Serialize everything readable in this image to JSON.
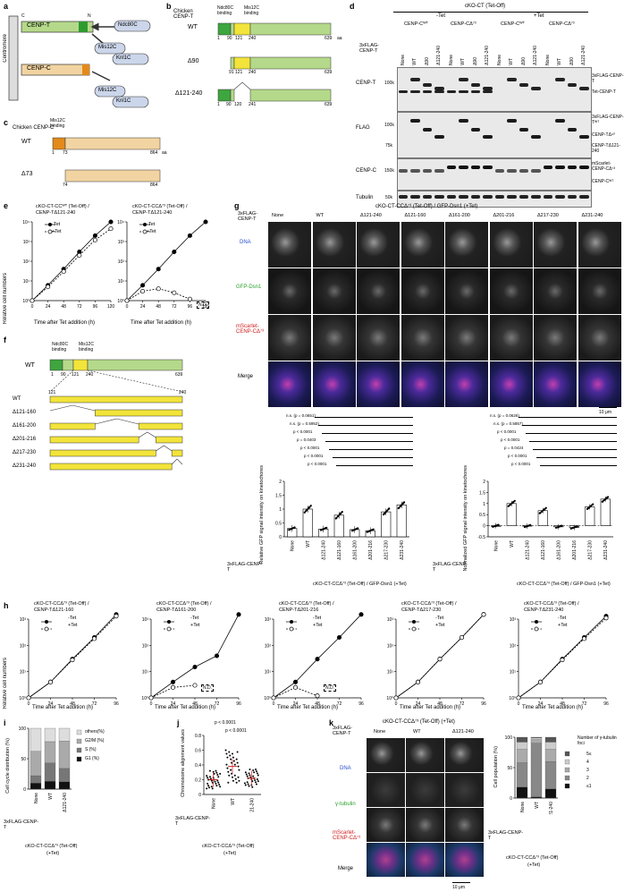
{
  "panels": {
    "a": {
      "letter": "a",
      "centromere": "Centromere",
      "cenp_t": "CENP-T",
      "cenp_c": "CENP-C",
      "c_label": "C",
      "n_label": "N",
      "ndc80c": "Ndc80C",
      "mis12c": "Mis12C",
      "knl1c": "Knl1C"
    },
    "b": {
      "letter": "b",
      "header": "Chicken CENP-T",
      "ndc80_binding": "Ndc80C binding",
      "mis12_binding": "Mis12C binding",
      "rows": [
        {
          "name": "WT",
          "ticks": [
            "1",
            "90",
            "121",
            "240"
          ],
          "end": "639",
          "unit": "aa"
        },
        {
          "name": "Δ90",
          "ticks": [
            "91",
            "121",
            "240"
          ],
          "end": "639"
        },
        {
          "name": "Δ121-240",
          "ticks": [
            "1",
            "90",
            "120",
            "241"
          ],
          "end": "639"
        }
      ]
    },
    "c": {
      "letter": "c",
      "header": "Chicken CENP-C",
      "mis12_binding": "Mis12C binding",
      "rows": [
        {
          "name": "WT",
          "start": "1",
          "mid": "73",
          "end": "864",
          "unit": "aa"
        },
        {
          "name": "Δ73",
          "start": "74",
          "end": "864"
        }
      ]
    },
    "d": {
      "letter": "d",
      "top_title": "cKO-CT (Tet-Off)",
      "minus_tet": "-Tet",
      "plus_tet": "+Tet",
      "groups": [
        "CENP-Cᵂᵀ",
        "CENP-CΔ⁷³",
        "CENP-Cᵂᵀ",
        "CENP-CΔ⁷³"
      ],
      "row_label": "3xFLAG-CENP-T",
      "lanes": [
        "None",
        "WT",
        "Δ90",
        "Δ121-240",
        "None",
        "WT",
        "Δ90",
        "Δ121-240",
        "None",
        "WT",
        "Δ90",
        "Δ121-240",
        "None",
        "WT",
        "Δ90",
        "Δ121-240"
      ],
      "blots": [
        {
          "name": "CENP-T",
          "mw": "100k",
          "right": [
            "3xFLAG-CENP-T",
            "Tet-CENP-T"
          ]
        },
        {
          "name": "FLAG",
          "mw": "100k",
          "mw2": "75k",
          "right": [
            "3xFLAG-CENP-Tᵂᵀ",
            "CENP-TΔ⁹⁰",
            "CENP-TΔ121-240"
          ]
        },
        {
          "name": "CENP-C",
          "mw": "150k",
          "right": [
            "mScarlet-CENP-CΔ⁷³",
            "CENP-Cᵂᵀ"
          ]
        },
        {
          "name": "Tubulin",
          "mw": "50k",
          "right": []
        }
      ]
    },
    "e": {
      "letter": "e",
      "plots": [
        {
          "title1": "cKO-CT-CCᵂᵀ (Tet-Off) /",
          "title2": "CENP-TΔ121-240"
        },
        {
          "title1": "cKO-CT-CCΔ⁷³ (Tet-Off) /",
          "title2": "CENP-TΔ121-240",
          "nd": "N.D."
        }
      ],
      "legend_minus": "-Tet",
      "legend_plus": "+Tet",
      "ylabel": "Relative cell numbers",
      "xlabel": "Time after Tet addition (h)",
      "xticks": [
        "0",
        "24",
        "48",
        "72",
        "96",
        "120"
      ],
      "yticks": [
        "10⁰",
        "10¹",
        "10²",
        "10³",
        "10⁴"
      ]
    },
    "f": {
      "letter": "f",
      "wt": "WT",
      "ndc80_binding": "Ndc80C binding",
      "mis12_binding": "Mis12C binding",
      "ticks": [
        "1",
        "90",
        "121",
        "240",
        "639"
      ],
      "zoom_start": "121",
      "zoom_end": "240",
      "rows": [
        "WT",
        "Δ121-160",
        "Δ161-200",
        "Δ201-216",
        "Δ217-230",
        "Δ231-240"
      ]
    },
    "f_bars": {
      "ylabel": "Relative GFP signal intensity on kinetochores",
      "ylabel2": "Normalized GFP signal intensity on kinetochores",
      "xlabel_row": "3xFLAG-CENP-T",
      "categories": [
        "None",
        "WT",
        "Δ121-240",
        "Δ121-160",
        "Δ161-200",
        "Δ201-216",
        "Δ217-230",
        "Δ231-240"
      ],
      "footer": "cKO-CT-CCΔ⁷³ (Tet-Off) / GFP-Dsn1 (+Tet)",
      "stats_left": [
        "n.s. (p = 0.0651)",
        "n.s. (p = 0.5952)",
        "p < 0.0001",
        "p = 0.0403",
        "p < 0.0001",
        "p < 0.0001",
        "p < 0.0001"
      ],
      "stats_right": [
        "n.s. (p = 0.0626)",
        "n.s. (p = 0.5857)",
        "p < 0.0001",
        "p < 0.0001",
        "p = 0.0424",
        "p < 0.0001",
        "p < 0.0001"
      ]
    },
    "g": {
      "letter": "g",
      "title": "cKO-CT-CCΔ⁷³ (Tet-Off) / GFP-Dsn1 (+Tet)",
      "row_head": "3xFLAG-CENP-T",
      "cols": [
        "None",
        "WT",
        "Δ121-240",
        "Δ121-160",
        "Δ161-200",
        "Δ201-216",
        "Δ217-230",
        "Δ231-240"
      ],
      "rows": [
        "DNA",
        "GFP-Dsn1",
        "mScarlet-CENP-CΔ⁷³",
        "Merge"
      ],
      "scale": "10 μm"
    },
    "h": {
      "letter": "h",
      "plots": [
        {
          "title1": "cKO-CT-CCΔ⁷³ (Tet-Off) /",
          "title2": "CENP-TΔ121-160"
        },
        {
          "title1": "cKO-CT-CCΔ⁷³ (Tet-Off) /",
          "title2": "CENP-TΔ161-200",
          "nd": "N.D."
        },
        {
          "title1": "cKO-CT-CCΔ⁷³ (Tet-Off) /",
          "title2": "CENP-TΔ201-216",
          "nd": "N.D."
        },
        {
          "title1": "cKO-CT-CCΔ⁷³ (Tet-Off) /",
          "title2": "CENP-TΔ217-230"
        },
        {
          "title1": "cKO-CT-CCΔ⁷³ (Tet-Off) /",
          "title2": "CENP-TΔ231-240"
        }
      ],
      "legend_minus": "-Tet",
      "legend_plus": "+Tet",
      "ylabel": "Relative cell numbers",
      "xlabel": "Time after Tet addition (h)",
      "xticks": [
        "0",
        "24",
        "48",
        "72",
        "96"
      ],
      "yticks": [
        "10⁰",
        "10¹",
        "10²",
        "10³"
      ]
    },
    "i": {
      "letter": "i",
      "ylabel": "Cell cycle distribution (%)",
      "legend": [
        "others(%)",
        "G2/M (%)",
        "S (%)",
        "G1 (%)"
      ],
      "cats": [
        "None",
        "WT",
        "Δ121-240"
      ],
      "row_head": "3xFLAG-CENP-T",
      "footer1": "cKO-CT-CCΔ⁷³ (Tet-Off)",
      "footer2": "(+Tet)",
      "yticks": [
        "0",
        "50",
        "100"
      ]
    },
    "j": {
      "letter": "j",
      "ylabel": "Chromosome alignment values",
      "p1": "p < 0.0001",
      "p2": "p < 0.0001",
      "cats": [
        "None",
        "WT",
        "Δ121-240"
      ],
      "row_head": "3xFLAG-CENP-T",
      "footer1": "cKO-CT-CCΔ⁷³ (Tet-Off)",
      "footer2": "(+Tet)",
      "yticks": [
        "0",
        "0.2",
        "0.4",
        "0.6",
        "0.8"
      ]
    },
    "k": {
      "letter": "k",
      "title": "cKO-CT-CCΔ⁷³ (Tet-Off) (+Tet)",
      "row_head": "3xFLAG-CENP-T",
      "cols": [
        "None",
        "WT",
        "Δ121-240"
      ],
      "rows": [
        "DNA",
        "γ-tubulin",
        "mScarlet-CENP-CΔ⁷³",
        "Merge"
      ],
      "scale": "10 μm",
      "bar_ylabel": "Cell population (%)",
      "legend_title": "Number of γ-tubulin foci",
      "legend": [
        "5≤",
        "4",
        "3",
        "2",
        "≤1"
      ],
      "bar_cats": [
        "None",
        "WT",
        "Δ121-240"
      ],
      "footer1": "cKO-CT-CCΔ⁷³ (Tet-Off)",
      "footer2": "(+Tet)",
      "yticks": [
        "0",
        "50",
        "100"
      ]
    }
  },
  "chart_data": [
    {
      "type": "line",
      "title": "cKO-CT-CC WT (Tet-Off) / CENP-T Δ121-240",
      "xlabel": "Time after Tet addition (h)",
      "ylabel": "Relative cell numbers",
      "yscale": "log",
      "x": [
        0,
        24,
        48,
        72,
        96,
        120
      ],
      "series": [
        {
          "name": "-Tet",
          "values": [
            1,
            6,
            40,
            300,
            2000,
            10000
          ]
        },
        {
          "name": "+Tet",
          "values": [
            1,
            5,
            30,
            200,
            1200,
            4500
          ]
        }
      ]
    },
    {
      "type": "line",
      "title": "cKO-CT-CC Δ73 (Tet-Off) / CENP-T Δ121-240",
      "xlabel": "Time after Tet addition (h)",
      "ylabel": "Relative cell numbers",
      "yscale": "log",
      "x": [
        0,
        24,
        48,
        72,
        96,
        120
      ],
      "series": [
        {
          "name": "-Tet",
          "values": [
            1,
            6,
            40,
            300,
            2000,
            10000
          ]
        },
        {
          "name": "+Tet",
          "values": [
            1,
            3,
            4,
            2.5,
            1.2,
            null
          ]
        }
      ]
    },
    {
      "type": "bar",
      "categories": [
        "None",
        "WT",
        "Δ121-240",
        "Δ121-160",
        "Δ161-200",
        "Δ201-216",
        "Δ217-230",
        "Δ231-240"
      ],
      "values": [
        0.3,
        1.0,
        0.28,
        0.78,
        0.26,
        0.22,
        0.9,
        1.15
      ],
      "ylabel": "Relative GFP signal intensity on kinetochores",
      "ylim": [
        0,
        2
      ]
    },
    {
      "type": "bar",
      "categories": [
        "None",
        "WT",
        "Δ121-240",
        "Δ121-160",
        "Δ161-200",
        "Δ201-216",
        "Δ217-230",
        "Δ231-240"
      ],
      "values": [
        0.0,
        1.0,
        -0.02,
        0.68,
        -0.05,
        -0.08,
        0.85,
        1.2
      ],
      "ylabel": "Normalized GFP signal intensity on kinetochores",
      "ylim": [
        -0.5,
        2
      ]
    },
    {
      "type": "line",
      "title": "cKO-CT-CC Δ73 / CENP-T Δ121-160",
      "x": [
        0,
        24,
        48,
        72,
        96
      ],
      "yscale": "log",
      "series": [
        {
          "name": "-Tet",
          "values": [
            1,
            4,
            30,
            200,
            1500
          ]
        },
        {
          "name": "+Tet",
          "values": [
            1,
            4,
            28,
            180,
            1300
          ]
        }
      ]
    },
    {
      "type": "line",
      "title": "cKO-CT-CC Δ73 / CENP-T Δ161-200",
      "x": [
        0,
        24,
        48,
        72,
        96
      ],
      "yscale": "log",
      "series": [
        {
          "name": "-Tet",
          "values": [
            1,
            4,
            15,
            40,
            1500
          ]
        },
        {
          "name": "+Tet",
          "values": [
            1,
            2.5,
            3,
            null,
            null
          ]
        }
      ]
    },
    {
      "type": "line",
      "title": "cKO-CT-CC Δ73 / CENP-T Δ201-216",
      "x": [
        0,
        24,
        48,
        72,
        96
      ],
      "yscale": "log",
      "series": [
        {
          "name": "-Tet",
          "values": [
            1,
            4,
            30,
            200,
            1500
          ]
        },
        {
          "name": "+Tet",
          "values": [
            1,
            2.5,
            1.2,
            null,
            null
          ]
        }
      ]
    },
    {
      "type": "line",
      "title": "cKO-CT-CC Δ73 / CENP-T Δ217-230",
      "x": [
        0,
        24,
        48,
        72,
        96
      ],
      "yscale": "log",
      "series": [
        {
          "name": "-Tet",
          "values": [
            1,
            4,
            30,
            200,
            1500
          ]
        },
        {
          "name": "+Tet",
          "values": [
            1,
            4,
            30,
            200,
            1500
          ]
        }
      ]
    },
    {
      "type": "line",
      "title": "cKO-CT-CC Δ73 / CENP-T Δ231-240",
      "x": [
        0,
        24,
        48,
        72,
        96
      ],
      "yscale": "log",
      "series": [
        {
          "name": "-Tet",
          "values": [
            1,
            4,
            30,
            200,
            1300
          ]
        },
        {
          "name": "+Tet",
          "values": [
            1,
            4,
            28,
            180,
            1100
          ]
        }
      ]
    },
    {
      "type": "bar",
      "stacked": true,
      "categories": [
        "None",
        "WT",
        "Δ121-240"
      ],
      "series": [
        {
          "name": "G1 (%)",
          "values": [
            10,
            13,
            12
          ]
        },
        {
          "name": "S (%)",
          "values": [
            12,
            30,
            22
          ]
        },
        {
          "name": "G2/M (%)",
          "values": [
            40,
            35,
            45
          ]
        },
        {
          "name": "others(%)",
          "values": [
            38,
            22,
            21
          ]
        }
      ],
      "ylabel": "Cell cycle distribution (%)",
      "ylim": [
        0,
        100
      ]
    },
    {
      "type": "scatter",
      "categories": [
        "None",
        "WT",
        "Δ121-240"
      ],
      "values": [
        0.2,
        0.38,
        0.22
      ],
      "ylabel": "Chromosome alignment values",
      "ylim": [
        0,
        0.8
      ]
    },
    {
      "type": "bar",
      "stacked": true,
      "categories": [
        "None",
        "WT",
        "Δ121-240"
      ],
      "series": [
        {
          "name": "≤1",
          "values": [
            18,
            2,
            15
          ]
        },
        {
          "name": "2",
          "values": [
            40,
            88,
            45
          ]
        },
        {
          "name": "3",
          "values": [
            22,
            6,
            20
          ]
        },
        {
          "name": "4",
          "values": [
            12,
            3,
            12
          ]
        },
        {
          "name": "5≤",
          "values": [
            8,
            1,
            8
          ]
        }
      ],
      "ylabel": "Cell population (%)",
      "ylim": [
        0,
        100
      ]
    }
  ]
}
